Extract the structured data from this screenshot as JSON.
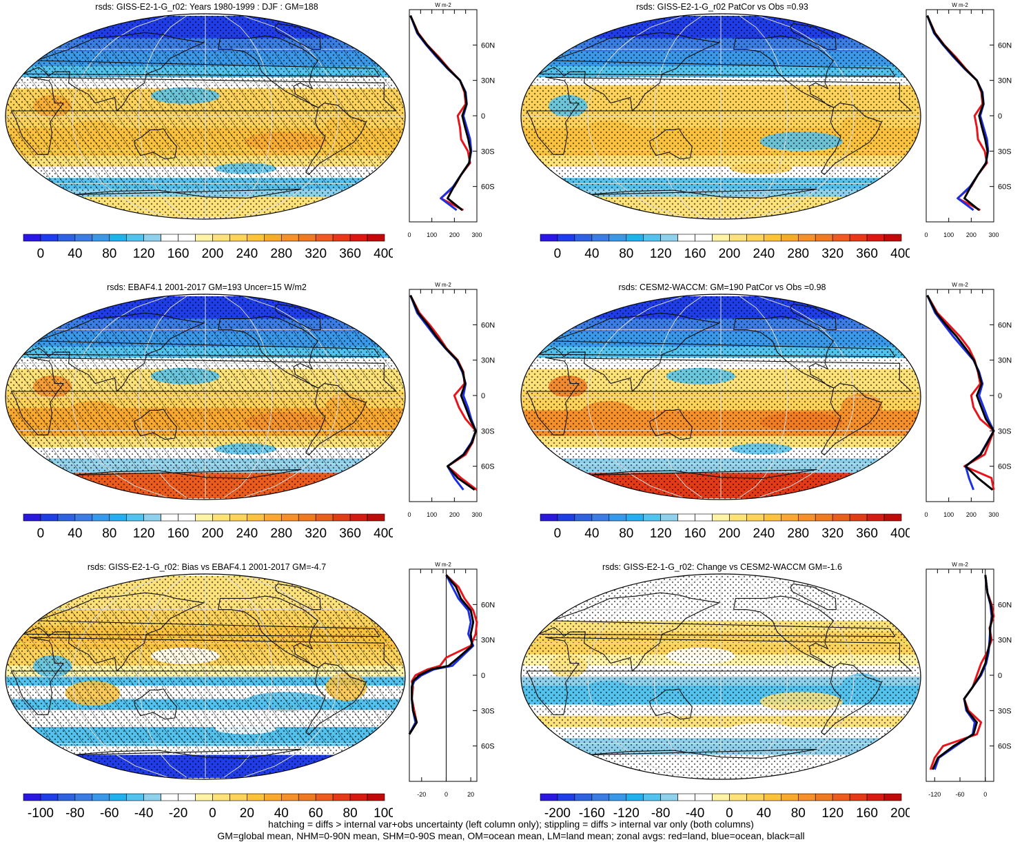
{
  "footer": {
    "line1": "hatching = diffs > internal var+obs uncertainty (left column only); stippling = diffs > internal var only (both columns)",
    "line2": "GM=global mean, NHM=0-90N mean, SHM=0-90S mean, OM=ocean mean, LM=land mean; zonal avgs: red=land, blue=ocean, black=all"
  },
  "colors": {
    "land": "#e8141c",
    "ocean": "#1a2fe6",
    "all": "#000000",
    "scale_abs": [
      "#2b18e0",
      "#1f3de8",
      "#2f62e0",
      "#3b7de4",
      "#3a98e8",
      "#23b0ee",
      "#52c2ee",
      "#8fd1ec",
      "#ffffff",
      "#ffffff",
      "#fff3a6",
      "#fde27a",
      "#fdd35a",
      "#fbc23c",
      "#f9a92e",
      "#f5902a",
      "#f07a22",
      "#eb5c1e",
      "#e53a18",
      "#d81a12",
      "#c00a0a"
    ],
    "scale_diff": [
      "#2b18e0",
      "#1f3de8",
      "#2f62e0",
      "#3b7de4",
      "#3a98e8",
      "#23b0ee",
      "#52c2ee",
      "#8fd1ec",
      "#ffffff",
      "#ffffff",
      "#fff3a6",
      "#fde27a",
      "#fdd35a",
      "#fbc23c",
      "#f9a92e",
      "#f5902a",
      "#f07a22",
      "#eb5c1e",
      "#e53a18",
      "#d81a12",
      "#c00a0a"
    ]
  },
  "zonal_units": "W m-2",
  "chart_data": [
    {
      "type": "heatmap",
      "title": "rsds: GISS-E2-1-G_r02: Years 1980-1999 : DJF : GM=188",
      "colorbar": {
        "ticks": [
          "0",
          "40",
          "80",
          "120",
          "160",
          "200",
          "240",
          "280",
          "320",
          "360",
          "400"
        ],
        "scale": "abs"
      },
      "map_kind": "abs",
      "hatched": true,
      "zonal": {
        "xticks": [
          "0",
          "100",
          "200",
          "300"
        ],
        "xlim": [
          0,
          300
        ],
        "yticks": [
          "60N",
          "30N",
          "0",
          "30S",
          "60S"
        ],
        "lat": [
          85,
          70,
          60,
          50,
          40,
          30,
          20,
          10,
          0,
          -10,
          -20,
          -30,
          -40,
          -50,
          -60,
          -70,
          -80
        ],
        "land": [
          5,
          40,
          80,
          130,
          175,
          225,
          245,
          250,
          215,
          225,
          230,
          260,
          270,
          230,
          200,
          140,
          240
        ],
        "ocean": [
          5,
          35,
          75,
          120,
          170,
          225,
          250,
          255,
          240,
          255,
          270,
          275,
          265,
          230,
          195,
          140,
          210
        ],
        "all": [
          5,
          38,
          78,
          125,
          172,
          225,
          248,
          254,
          235,
          248,
          262,
          272,
          266,
          230,
          198,
          170,
          235
        ]
      }
    },
    {
      "type": "heatmap",
      "title": "rsds: GISS-E2-1-G_r02 PatCor vs Obs =0.93",
      "colorbar": {
        "ticks": [
          "0",
          "40",
          "80",
          "120",
          "160",
          "200",
          "240",
          "280",
          "320",
          "360",
          "400"
        ],
        "scale": "abs"
      },
      "map_kind": "abs2",
      "hatched": false,
      "zonal": {
        "xticks": [
          "0",
          "100",
          "200",
          "300"
        ],
        "xlim": [
          0,
          300
        ],
        "yticks": [
          "60N",
          "30N",
          "0",
          "30S",
          "60S"
        ],
        "lat": [
          85,
          70,
          60,
          50,
          40,
          30,
          20,
          10,
          0,
          -10,
          -20,
          -30,
          -40,
          -50,
          -60,
          -70,
          -80
        ],
        "land": [
          5,
          40,
          80,
          130,
          175,
          225,
          245,
          250,
          215,
          225,
          230,
          260,
          270,
          230,
          200,
          140,
          240
        ],
        "ocean": [
          5,
          35,
          75,
          120,
          170,
          225,
          250,
          255,
          240,
          255,
          270,
          275,
          265,
          230,
          195,
          140,
          210
        ],
        "all": [
          5,
          38,
          78,
          125,
          172,
          225,
          248,
          254,
          235,
          248,
          262,
          272,
          266,
          230,
          198,
          170,
          235
        ]
      }
    },
    {
      "type": "heatmap",
      "title": "rsds: EBAF4.1 2001-2017 GM=193 Uncer=15 W/m2",
      "colorbar": {
        "ticks": [
          "0",
          "40",
          "80",
          "120",
          "160",
          "200",
          "240",
          "280",
          "320",
          "360",
          "400"
        ],
        "scale": "abs"
      },
      "map_kind": "abs3",
      "hatched": true,
      "zonal": {
        "xticks": [
          "0",
          "100",
          "200",
          "300"
        ],
        "xlim": [
          0,
          300
        ],
        "yticks": [
          "60N",
          "30N",
          "0",
          "30S",
          "60S"
        ],
        "lat": [
          85,
          70,
          60,
          50,
          40,
          30,
          20,
          10,
          0,
          -10,
          -20,
          -30,
          -40,
          -50,
          -60,
          -70,
          -80
        ],
        "land": [
          5,
          45,
          90,
          130,
          165,
          215,
          240,
          245,
          200,
          220,
          250,
          295,
          280,
          250,
          170,
          230,
          300
        ],
        "ocean": [
          5,
          35,
          75,
          115,
          160,
          210,
          235,
          250,
          240,
          260,
          275,
          295,
          275,
          240,
          170,
          200,
          240
        ],
        "all": [
          5,
          40,
          82,
          120,
          162,
          212,
          238,
          248,
          230,
          250,
          270,
          295,
          278,
          242,
          170,
          215,
          290
        ]
      }
    },
    {
      "type": "heatmap",
      "title": "rsds: CESM2-WACCM: GM=190 PatCor vs Obs =0.98",
      "colorbar": {
        "ticks": [
          "0",
          "40",
          "80",
          "120",
          "160",
          "200",
          "240",
          "280",
          "320",
          "360",
          "400"
        ],
        "scale": "abs"
      },
      "map_kind": "abs4",
      "hatched": false,
      "zonal": {
        "xticks": [
          "0",
          "100",
          "200",
          "300"
        ],
        "xlim": [
          0,
          300
        ],
        "yticks": [
          "60N",
          "30N",
          "0",
          "30S",
          "60S"
        ],
        "lat": [
          85,
          70,
          60,
          50,
          40,
          30,
          20,
          10,
          0,
          -10,
          -20,
          -30,
          -40,
          -50,
          -60,
          -70,
          -80
        ],
        "land": [
          5,
          50,
          100,
          150,
          190,
          215,
          230,
          240,
          200,
          210,
          240,
          300,
          280,
          260,
          170,
          290,
          300
        ],
        "ocean": [
          5,
          40,
          80,
          120,
          165,
          210,
          235,
          250,
          235,
          255,
          275,
          300,
          270,
          240,
          175,
          190,
          210
        ],
        "all": [
          5,
          45,
          88,
          135,
          175,
          212,
          232,
          246,
          225,
          245,
          265,
          300,
          272,
          242,
          175,
          230,
          295
        ]
      }
    },
    {
      "type": "heatmap",
      "title": "rsds: GISS-E2-1-G_r02: Bias vs EBAF4.1 2001-2017 GM=-4.7",
      "colorbar": {
        "ticks": [
          "-100",
          "-80",
          "-60",
          "-40",
          "-20",
          "0",
          "20",
          "40",
          "60",
          "80",
          "100"
        ],
        "scale": "diff"
      },
      "map_kind": "bias",
      "hatched": true,
      "zonal": {
        "xticks": [
          "-20",
          "0",
          "20"
        ],
        "xlim": [
          -30,
          25
        ],
        "yticks": [
          "60N",
          "30N",
          "0",
          "30S",
          "60S"
        ],
        "lat": [
          85,
          75,
          65,
          55,
          45,
          35,
          25,
          15,
          8,
          5,
          0,
          -5,
          -10,
          -20,
          -30,
          -40,
          -50
        ],
        "land": [
          0,
          10,
          15,
          22,
          25,
          24,
          20,
          0,
          -5,
          -15,
          -25,
          -28,
          -27,
          -28,
          -26,
          -24,
          -30
        ],
        "ocean": [
          0,
          5,
          10,
          18,
          20,
          18,
          22,
          12,
          5,
          -10,
          -20,
          -26,
          -28,
          -28,
          -27,
          -25,
          -30
        ],
        "all": [
          0,
          8,
          12,
          20,
          22,
          20,
          21,
          10,
          2,
          -12,
          -22,
          -27,
          -28,
          -28,
          -27,
          -24,
          -30
        ]
      }
    },
    {
      "type": "heatmap",
      "title": "rsds: GISS-E2-1-G_r02: Change vs CESM2-WACCM GM=-1.6",
      "colorbar": {
        "ticks": [
          "-200",
          "-160",
          "-120",
          "-80",
          "-40",
          "0",
          "40",
          "80",
          "120",
          "160",
          "200"
        ],
        "scale": "diff"
      },
      "map_kind": "change",
      "hatched": false,
      "zonal": {
        "xticks": [
          "-120",
          "-60",
          "0"
        ],
        "xlim": [
          -140,
          20
        ],
        "yticks": [
          "60N",
          "30N",
          "0",
          "30S",
          "60S"
        ],
        "lat": [
          85,
          70,
          60,
          50,
          40,
          30,
          20,
          10,
          0,
          -10,
          -20,
          -30,
          -40,
          -50,
          -60,
          -70,
          -80
        ],
        "land": [
          0,
          5,
          15,
          20,
          10,
          15,
          5,
          -10,
          -20,
          -30,
          -50,
          -40,
          -10,
          -20,
          -100,
          -120,
          -130
        ],
        "ocean": [
          0,
          5,
          12,
          15,
          12,
          10,
          8,
          2,
          -10,
          -30,
          -50,
          -45,
          -25,
          -30,
          -70,
          -110,
          -120
        ],
        "all": [
          0,
          5,
          13,
          17,
          11,
          12,
          6,
          0,
          -12,
          -30,
          -50,
          -43,
          -20,
          -28,
          -75,
          -112,
          -125
        ]
      }
    }
  ]
}
